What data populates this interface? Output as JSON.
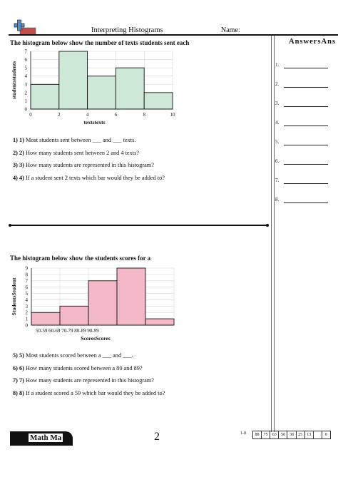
{
  "header": {
    "title": "Interpreting Histograms",
    "name_label": "Name:",
    "answers_label": "AnswersAns"
  },
  "answers": {
    "numbers": [
      "1.",
      "2.",
      "3.",
      "4.",
      "5.",
      "6.",
      "7.",
      "8."
    ]
  },
  "section1": {
    "heading": "The histogram below show the number of texts students sent each",
    "questions": [
      {
        "num": "1) 1)",
        "text": "Most students sent between ___ and ___ texts."
      },
      {
        "num": "2) 2)",
        "text": "How many students sent between 2 and 4 texts?"
      },
      {
        "num": "3) 3)",
        "text": "How many students are represented in this histogram?"
      },
      {
        "num": "4) 4)",
        "text": "If a student sent 2 texts which bar would they be added to?"
      }
    ]
  },
  "section2": {
    "heading": "The histogram below show the students scores for a",
    "questions": [
      {
        "num": "5) 5)",
        "text": "Most students scored between a ___ and ___."
      },
      {
        "num": "6) 6)",
        "text": "How many students scored between a 80 and 89?"
      },
      {
        "num": "7) 7)",
        "text": "How many students are represented in this histogram?"
      },
      {
        "num": "8) 8)",
        "text": "If a student scored a 59 which bar would they be added to?"
      }
    ]
  },
  "chart_data": [
    {
      "type": "bar",
      "bins": [
        [
          0,
          2
        ],
        [
          2,
          4
        ],
        [
          4,
          6
        ],
        [
          6,
          8
        ],
        [
          8,
          10
        ]
      ],
      "values": [
        3,
        7,
        4,
        5,
        2
      ],
      "xticks": [
        "0",
        "2",
        "4",
        "6",
        "8",
        "10"
      ],
      "yticks": [
        "0",
        "1",
        "2",
        "3",
        "4",
        "5",
        "6",
        "7"
      ],
      "xlabel": "textstexts",
      "ylabel": "studentsstudents",
      "ylim": [
        0,
        7
      ],
      "grid": true,
      "color": "#cde8d6",
      "edge": "#111111"
    },
    {
      "type": "bar",
      "categories": [
        "50-59",
        "60-69",
        "70-79",
        "80-89",
        "90-99"
      ],
      "tick_text": "50-59 60-69 70-79 80-89 90-99",
      "values": [
        2,
        3,
        7,
        9,
        1
      ],
      "yticks": [
        "0",
        "1",
        "2",
        "3",
        "4",
        "5",
        "6",
        "7",
        "8",
        "9"
      ],
      "xlabel": "ScoresScores",
      "ylabel": "StudentsStudent",
      "ylim": [
        0,
        9
      ],
      "grid": true,
      "color": "#f2b8c8",
      "edge": "#111111"
    }
  ],
  "footer": {
    "brand": "Math Ma",
    "page_number": "2",
    "score_label": "1-8",
    "scores": [
      "88",
      "75",
      "63",
      "50",
      "38",
      "25",
      "13",
      ""
    ],
    "score_end": "0"
  }
}
